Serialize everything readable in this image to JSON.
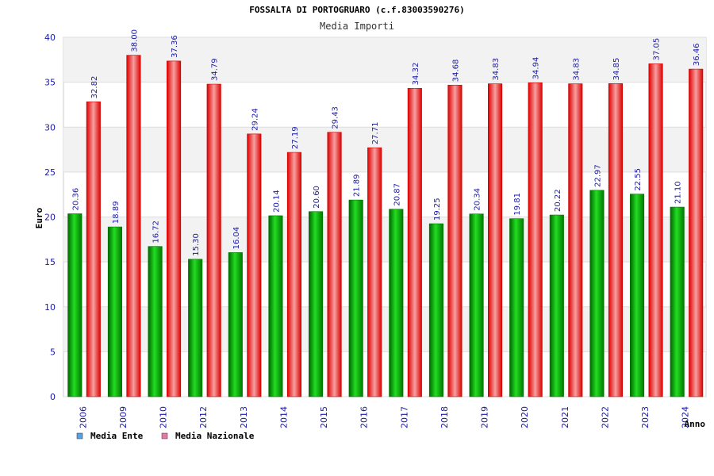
{
  "chart_data": {
    "type": "bar",
    "title": "FOSSALTA DI PORTOGRUARO (c.f.83003590276)",
    "subtitle": "Media Importi",
    "ylabel": "Euro",
    "xlabel": "Anno",
    "ylim": [
      0,
      40
    ],
    "yticks": [
      0,
      5,
      10,
      15,
      20,
      25,
      30,
      35,
      40
    ],
    "categories": [
      "2006",
      "2009",
      "2010",
      "2012",
      "2013",
      "2014",
      "2015",
      "2016",
      "2017",
      "2018",
      "2019",
      "2020",
      "2021",
      "2022",
      "2023",
      "2024"
    ],
    "series": [
      {
        "name": "Media Ente",
        "color": "#00aa00",
        "legend_color": "#5aa0e6",
        "values": [
          20.36,
          18.89,
          16.72,
          15.3,
          16.04,
          20.14,
          20.6,
          21.89,
          20.87,
          19.25,
          20.34,
          19.81,
          20.22,
          22.97,
          22.55,
          21.1
        ],
        "labels": [
          "20.36",
          "18.89",
          "16.72",
          "15.30",
          "16.04",
          "20.14",
          "20.60",
          "21.89",
          "20.87",
          "19.25",
          "20.34",
          "19.81",
          "20.22",
          "22.97",
          "22.55",
          "21.10"
        ]
      },
      {
        "name": "Media Nazionale",
        "color": "#ee1111",
        "legend_color": "#e27aa8",
        "values": [
          32.82,
          38.0,
          37.36,
          34.79,
          29.24,
          27.19,
          29.43,
          27.71,
          34.32,
          34.68,
          34.83,
          34.94,
          34.83,
          34.85,
          37.05,
          36.46
        ],
        "labels": [
          "32.82",
          "38.00",
          "37.36",
          "34.79",
          "29.24",
          "27.19",
          "29.43",
          "27.71",
          "34.32",
          "34.68",
          "34.83",
          "34.94",
          "34.83",
          "34.85",
          "37.05",
          "36.46"
        ]
      }
    ],
    "grid": true,
    "legend_position": "bottom-left"
  }
}
